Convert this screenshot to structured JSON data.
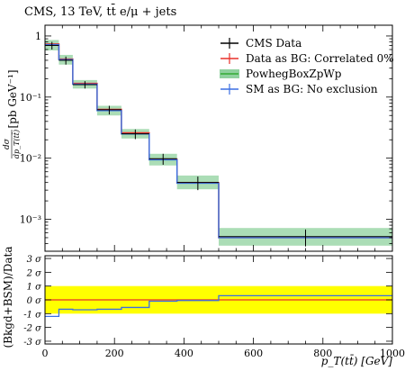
{
  "chart_data": [
    {
      "type": "line",
      "panel": "main",
      "title": "CMS, 13 TeV, tt̄ e/μ + jets",
      "xlim": [
        0,
        1000
      ],
      "ylim": [
        0.0003,
        1.5
      ],
      "ylog": true,
      "ylabel_parts": {
        "frac_num": "dσ",
        "frac_den": "dp_T(tt̄)",
        "unit": "[pb GeV⁻¹]"
      },
      "ytick_labels": [
        "1",
        "10⁻¹",
        "10⁻²",
        "10⁻³"
      ],
      "ytick_values": [
        1,
        0.1,
        0.01,
        0.001
      ],
      "bin_edges": [
        0,
        40,
        80,
        150,
        220,
        300,
        380,
        500,
        1000
      ],
      "legend_position": "top-right",
      "series": [
        {
          "name": "CMS Data",
          "color": "#000000",
          "style": "points",
          "values": [
            0.7,
            0.4,
            0.16,
            0.062,
            0.025,
            0.0098,
            0.004,
            0.00052
          ],
          "err": [
            0.1,
            0.06,
            0.022,
            0.01,
            0.0045,
            0.002,
            0.001,
            0.00016
          ]
        },
        {
          "name": "Data as BG: Correlated 0%",
          "color": "#e8302a",
          "style": "step",
          "values": [
            0.74,
            0.42,
            0.168,
            0.063,
            0.026,
            0.0096,
            0.004,
            0.0005
          ]
        },
        {
          "name": "PowhegBoxZpWp",
          "color": "#33aa33",
          "style": "band",
          "values": [
            0.72,
            0.41,
            0.163,
            0.06,
            0.025,
            0.0094,
            0.0039,
            0.0005
          ],
          "band_low": [
            0.58,
            0.34,
            0.138,
            0.05,
            0.021,
            0.0076,
            0.0031,
            0.00037
          ],
          "band_high": [
            0.86,
            0.49,
            0.19,
            0.072,
            0.03,
            0.0118,
            0.0052,
            0.00072
          ]
        },
        {
          "name": "SM as BG: No exclusion",
          "color": "#3b6fe3",
          "style": "step",
          "values": [
            0.72,
            0.41,
            0.163,
            0.06,
            0.025,
            0.0094,
            0.0039,
            0.0005
          ]
        }
      ]
    },
    {
      "type": "line",
      "panel": "ratio",
      "xlabel": "p_T(tt̄) [GeV]",
      "ylabel": "(Bkgd+BSM)/Data",
      "xlim": [
        0,
        1000
      ],
      "ylim": [
        -3.2,
        3.2
      ],
      "xtick_labels": [
        "0",
        "200",
        "400",
        "600",
        "800",
        "1000"
      ],
      "xtick_values": [
        0,
        200,
        400,
        600,
        800,
        1000
      ],
      "ytick_labels": [
        "3 σ",
        "2 σ",
        "1 σ",
        "0 σ",
        "-1 σ",
        "-2 σ",
        "-3 σ"
      ],
      "ytick_values": [
        3,
        2,
        1,
        0,
        -1,
        -2,
        -3
      ],
      "band": {
        "low": -1,
        "high": 1,
        "color": "#ffff00"
      },
      "bin_edges": [
        0,
        40,
        80,
        150,
        220,
        300,
        380,
        500,
        1000
      ],
      "series": [
        {
          "name": "Data as BG: Correlated 0%",
          "color": "#e8302a",
          "values": [
            0,
            0,
            0,
            0,
            0,
            0,
            0,
            0
          ]
        },
        {
          "name": "SM as BG: No exclusion",
          "color": "#3b6fe3",
          "values": [
            -1.2,
            -0.68,
            -0.72,
            -0.68,
            -0.55,
            -0.1,
            -0.05,
            0.3
          ]
        }
      ]
    }
  ]
}
